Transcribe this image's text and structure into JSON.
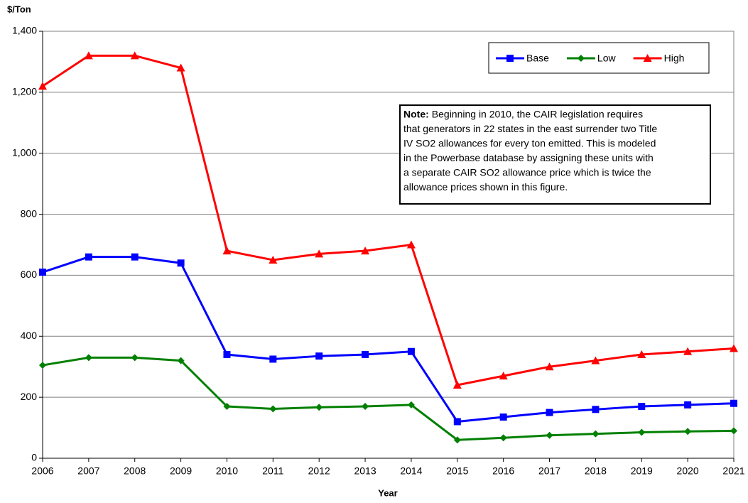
{
  "chart_data": {
    "type": "line",
    "y_label": "$/Ton",
    "x_label": "Year",
    "x": [
      2006,
      2007,
      2008,
      2009,
      2010,
      2011,
      2012,
      2013,
      2014,
      2015,
      2016,
      2017,
      2018,
      2019,
      2020,
      2021
    ],
    "xlim": [
      2006,
      2021
    ],
    "xticks": [
      2006,
      2007,
      2008,
      2009,
      2010,
      2011,
      2012,
      2013,
      2014,
      2015,
      2016,
      2017,
      2018,
      2019,
      2020,
      2021
    ],
    "ylim": [
      0,
      1400
    ],
    "yticks": [
      0,
      200,
      400,
      600,
      800,
      {
        "value": 1000,
        "label": "1,000"
      },
      {
        "value": 1200,
        "label": "1,200"
      },
      {
        "value": 1400,
        "label": "1,400"
      }
    ],
    "grid": true,
    "legend": "top-right",
    "series": [
      {
        "name": "Base",
        "color": "#0000ff",
        "marker": "square",
        "values": [
          610,
          660,
          660,
          640,
          340,
          325,
          335,
          340,
          350,
          120,
          135,
          150,
          160,
          170,
          175,
          180
        ]
      },
      {
        "name": "Low",
        "color": "#008000",
        "marker": "diamond",
        "values": [
          305,
          330,
          330,
          320,
          170,
          162,
          167,
          170,
          175,
          60,
          67,
          75,
          80,
          85,
          88,
          90
        ]
      },
      {
        "name": "High",
        "color": "#ff0000",
        "marker": "triangle",
        "values": [
          1220,
          1320,
          1320,
          1280,
          680,
          650,
          670,
          680,
          700,
          240,
          270,
          300,
          320,
          340,
          350,
          360
        ]
      }
    ],
    "note": {
      "label": "Note:",
      "lines": [
        "Beginning in 2010, the CAIR legislation requires",
        "that generators in 22 states in the east surrender two Title",
        "IV SO2 allowances for every ton emitted. This is modeled",
        "in the Powerbase database by assigning these units with",
        "a separate CAIR SO2 allowance price which is twice the",
        "allowance prices shown in this figure."
      ]
    }
  }
}
